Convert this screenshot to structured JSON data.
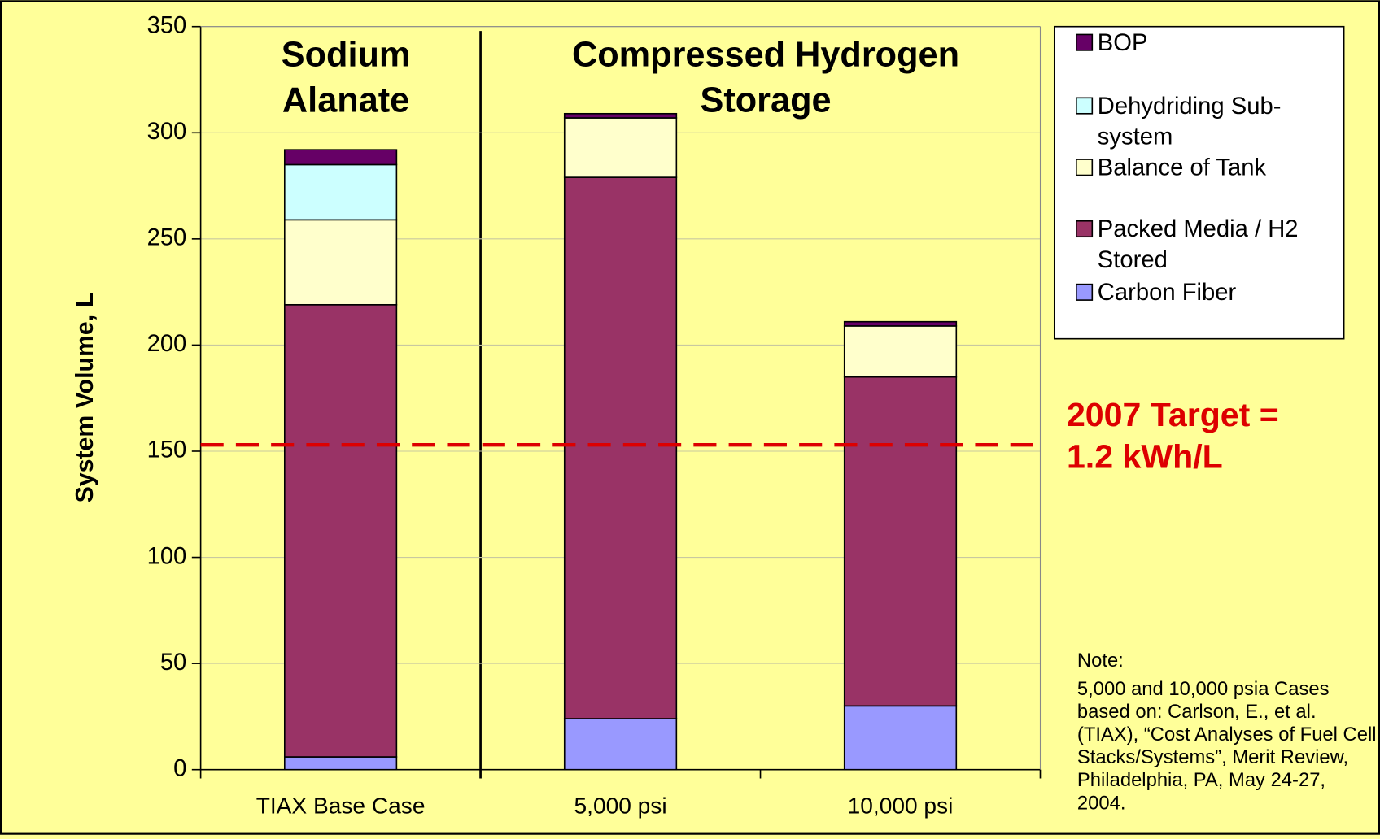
{
  "chart_data": {
    "type": "stacked_bar",
    "y_label": "System Volume, L",
    "categories": [
      "TIAX Base Case",
      "5,000 psi",
      "10,000 psi"
    ],
    "group_labels": [
      "Sodium Alanate",
      "Compressed Hydrogen Storage"
    ],
    "series": [
      {
        "name": "Carbon Fiber",
        "color": "#9999FF",
        "values": [
          6,
          24,
          30
        ]
      },
      {
        "name": "Packed Media / H2 Stored",
        "color": "#993366",
        "values": [
          213,
          255,
          155
        ]
      },
      {
        "name": "Balance of Tank",
        "color": "#FFFFCC",
        "values": [
          40,
          28,
          24
        ]
      },
      {
        "name": "Dehydriding Sub-system",
        "color": "#CCFFFF",
        "values": [
          26,
          0,
          0
        ]
      },
      {
        "name": "BOP",
        "color": "#660066",
        "values": [
          7,
          2,
          2
        ]
      }
    ],
    "ylim": [
      0,
      350
    ],
    "yticks": [
      0,
      50,
      100,
      150,
      200,
      250,
      300,
      350
    ],
    "grid": true,
    "legend": "right",
    "target": {
      "value": 153,
      "label": "2007 Target = 1.2 kWh/L",
      "color": "#DD0000"
    },
    "note": {
      "title": "Note:",
      "text": "5,000 and 10,000 psia Cases based on: Carlson, E., et al. (TIAX), “Cost Analyses of Fuel Cell Stacks/Systems”, Merit Review, Philadelphia, PA, May 24-27, 2004."
    }
  }
}
